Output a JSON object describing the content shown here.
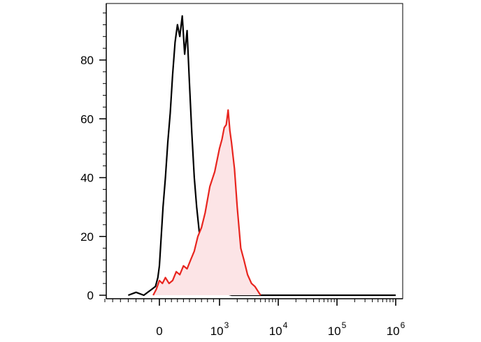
{
  "chart_data": {
    "type": "area",
    "title": "",
    "xlabel": "",
    "ylabel": "",
    "x_scale": "biexponential",
    "x_tick_labels": [
      {
        "value": 0,
        "base": "0",
        "exp": ""
      },
      {
        "value": 1000,
        "base": "10",
        "exp": "3"
      },
      {
        "value": 10000,
        "base": "10",
        "exp": "4"
      },
      {
        "value": 100000,
        "base": "10",
        "exp": "5"
      },
      {
        "value": 1000000,
        "base": "10",
        "exp": "6"
      }
    ],
    "y_ticks": [
      0,
      20,
      40,
      60,
      80
    ],
    "ylim": [
      0,
      96
    ],
    "grid": false,
    "legend": "none",
    "series": [
      {
        "color": "#000000",
        "fill": "none",
        "x": [
          -400,
          -300,
          -200,
          -150,
          -100,
          -50,
          -20,
          0,
          30,
          60,
          100,
          140,
          180,
          220,
          260,
          300,
          340,
          380,
          420,
          460,
          500,
          540,
          580,
          620,
          660,
          700,
          760,
          820,
          900,
          1000,
          1100,
          1300,
          1600,
          2000,
          3000,
          5000,
          10000,
          100000,
          1000000
        ],
        "values": [
          0,
          1,
          0,
          1,
          2,
          3,
          6,
          10,
          20,
          30,
          40,
          52,
          62,
          75,
          86,
          92,
          88,
          95,
          82,
          90,
          72,
          55,
          40,
          30,
          22,
          17,
          10,
          5,
          2,
          1,
          0.5,
          0.5,
          0,
          0,
          0,
          0,
          0,
          0,
          0
        ]
      },
      {
        "color": "#e8251f",
        "fill": "#fce4e6",
        "x": [
          -80,
          -40,
          0,
          50,
          100,
          160,
          220,
          280,
          340,
          400,
          460,
          520,
          580,
          640,
          700,
          760,
          840,
          920,
          1000,
          1100,
          1200,
          1300,
          1400,
          1500,
          1600,
          1800,
          2000,
          2300,
          2600,
          3000,
          3500,
          4000,
          5000
        ],
        "values": [
          0,
          2,
          5,
          4,
          6,
          4,
          5,
          8,
          7,
          10,
          9,
          12,
          15,
          20,
          23,
          28,
          37,
          42,
          50,
          53,
          57,
          58,
          63,
          56,
          52,
          43,
          30,
          16,
          12,
          7,
          4,
          3,
          0
        ]
      }
    ]
  }
}
